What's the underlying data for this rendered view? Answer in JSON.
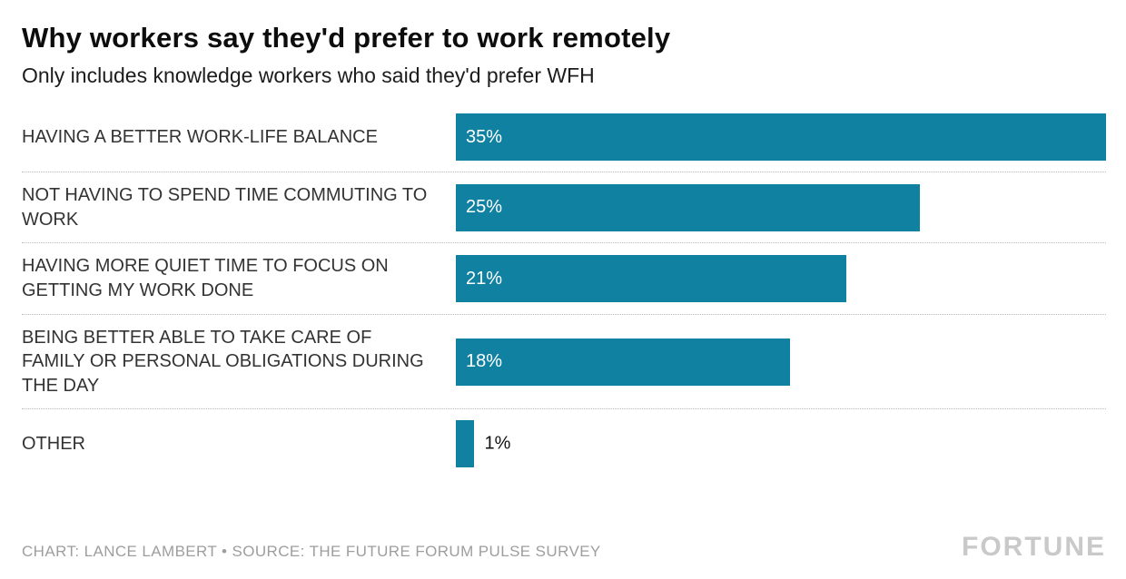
{
  "chart_data": {
    "type": "bar",
    "orientation": "horizontal",
    "title": "Why workers say they'd prefer to work remotely",
    "subtitle": "Only includes knowledge workers who said they'd prefer WFH",
    "categories": [
      "HAVING A BETTER WORK-LIFE BALANCE",
      "NOT HAVING TO SPEND TIME COMMUTING TO WORK",
      "HAVING MORE QUIET TIME TO FOCUS ON GETTING MY WORK DONE",
      "BEING BETTER ABLE TO TAKE CARE OF FAMILY OR PERSONAL OBLIGATIONS DURING THE DAY",
      "OTHER"
    ],
    "values": [
      35,
      25,
      21,
      18,
      1
    ],
    "value_labels": [
      "35%",
      "25%",
      "21%",
      "18%",
      "1%"
    ],
    "xlim": [
      0,
      35
    ],
    "bar_color": "#1181a2",
    "value_label_color_inside": "#ffffff",
    "value_label_color_outside": "#111111",
    "inside_label_min_value": 5,
    "grid": false,
    "legend": false
  },
  "footer": {
    "credit": "CHART: LANCE LAMBERT • SOURCE: THE FUTURE FORUM PULSE SURVEY",
    "logo": "FORTUNE"
  }
}
